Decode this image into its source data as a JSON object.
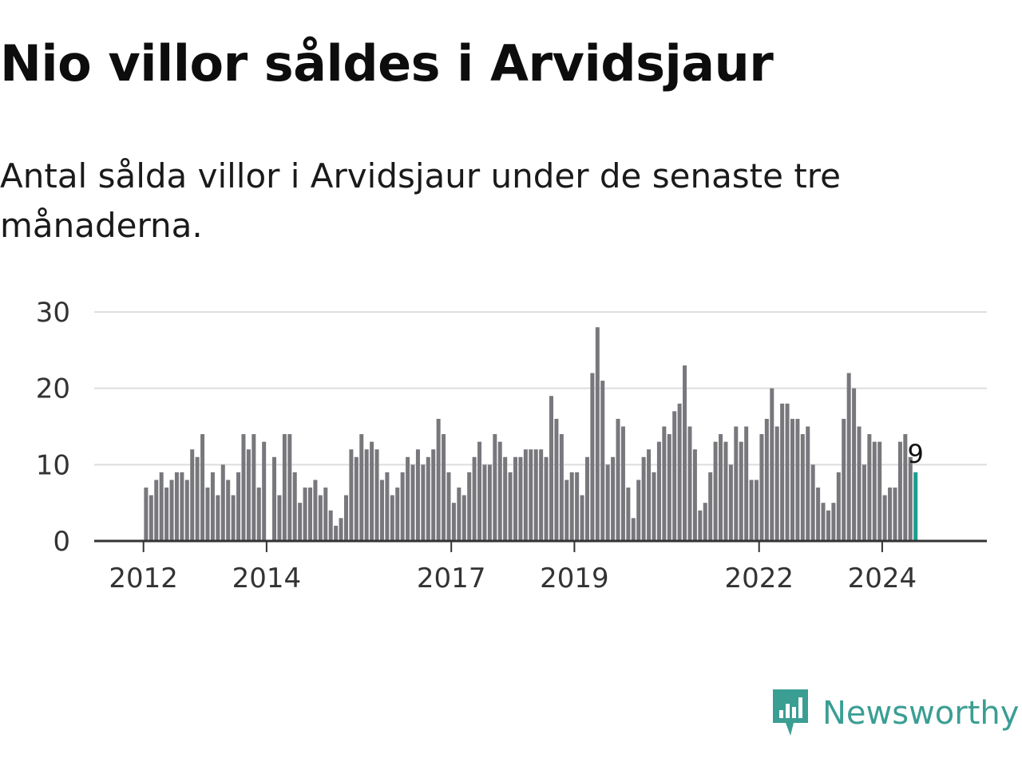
{
  "header": {
    "title": "Nio villor såldes i Arvidsjaur",
    "subtitle": "Antal sålda villor i Arvidsjaur under de senaste tre månaderna."
  },
  "brand": {
    "name": "Newsworthy",
    "icon": "newsworthy-logo-icon",
    "color": "#3a9e93"
  },
  "colors": {
    "bar": "#78777c",
    "highlight": "#1a9e8f",
    "grid": "#dddddd",
    "axis": "#333333"
  },
  "chart_data": {
    "type": "bar",
    "title": "Nio villor såldes i Arvidsjaur",
    "subtitle": "Antal sålda villor i Arvidsjaur under de senaste tre månaderna.",
    "xlabel": "",
    "ylabel": "",
    "ylim": [
      0,
      30
    ],
    "yticks": [
      0,
      10,
      20,
      30
    ],
    "grid": true,
    "x_start": "2012-01",
    "frequency": "monthly",
    "x_range_years": [
      2011.2,
      2025.7
    ],
    "xticks": [
      {
        "label": "2012",
        "year": 2012
      },
      {
        "label": "2014",
        "year": 2014
      },
      {
        "label": "2017",
        "year": 2017
      },
      {
        "label": "2019",
        "year": 2019
      },
      {
        "label": "2022",
        "year": 2022
      },
      {
        "label": "2024",
        "year": 2024
      }
    ],
    "values": [
      7,
      6,
      8,
      9,
      7,
      8,
      9,
      9,
      8,
      12,
      11,
      14,
      7,
      9,
      6,
      10,
      8,
      6,
      9,
      14,
      12,
      14,
      7,
      13,
      0,
      11,
      6,
      14,
      14,
      9,
      5,
      7,
      7,
      8,
      6,
      7,
      4,
      2,
      3,
      6,
      12,
      11,
      14,
      12,
      13,
      12,
      8,
      9,
      6,
      7,
      9,
      11,
      10,
      12,
      10,
      11,
      12,
      16,
      14,
      9,
      5,
      7,
      6,
      9,
      11,
      13,
      10,
      10,
      14,
      13,
      11,
      9,
      11,
      11,
      12,
      12,
      12,
      12,
      11,
      19,
      16,
      14,
      8,
      9,
      9,
      6,
      11,
      22,
      28,
      21,
      10,
      11,
      16,
      15,
      7,
      3,
      8,
      11,
      12,
      9,
      13,
      15,
      14,
      17,
      18,
      23,
      15,
      12,
      4,
      5,
      9,
      13,
      14,
      13,
      10,
      15,
      13,
      15,
      8,
      8,
      14,
      16,
      20,
      15,
      18,
      18,
      16,
      16,
      14,
      15,
      10,
      7,
      5,
      4,
      5,
      9,
      16,
      22,
      20,
      15,
      10,
      14,
      13,
      13,
      6,
      7,
      7,
      13,
      14,
      11,
      9
    ],
    "highlight_label": "9"
  }
}
